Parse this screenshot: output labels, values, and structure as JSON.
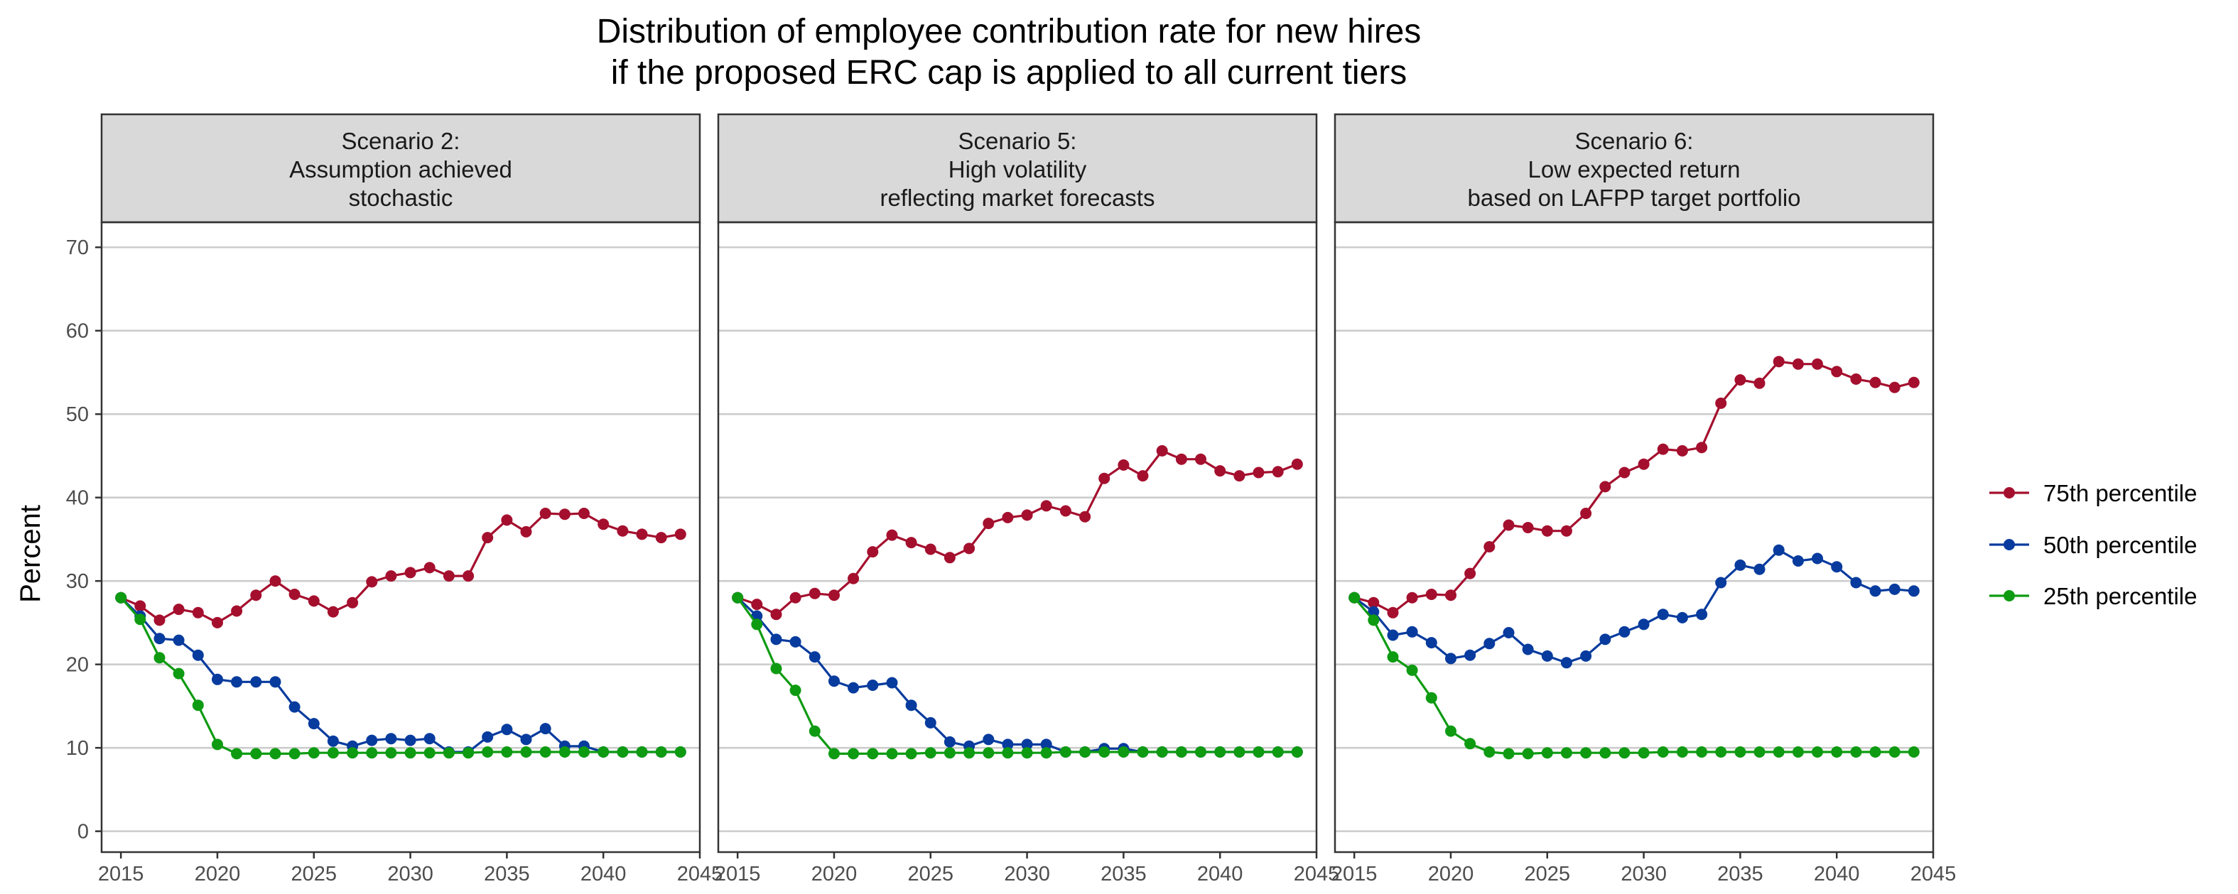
{
  "chart_data": {
    "type": "line",
    "title_lines": [
      "Distribution of employee contribution rate for new hires",
      "if the proposed ERC cap is applied to all current tiers"
    ],
    "ylabel": "Percent",
    "xlabel": "",
    "xlim": [
      2014,
      2045
    ],
    "ylim": [
      -2.5,
      73
    ],
    "x_ticks": [
      2015,
      2020,
      2025,
      2030,
      2035,
      2040,
      2045
    ],
    "y_ticks": [
      0,
      10,
      20,
      30,
      40,
      50,
      60,
      70
    ],
    "grid": true,
    "legend_position": "right",
    "legend": [
      {
        "name": "75th percentile",
        "color": "#a50f2e"
      },
      {
        "name": "50th percentile",
        "color": "#073b9e"
      },
      {
        "name": "25th percentile",
        "color": "#0e9b12"
      }
    ],
    "x": [
      2015,
      2016,
      2017,
      2018,
      2019,
      2020,
      2021,
      2022,
      2023,
      2024,
      2025,
      2026,
      2027,
      2028,
      2029,
      2030,
      2031,
      2032,
      2033,
      2034,
      2035,
      2036,
      2037,
      2038,
      2039,
      2040,
      2041,
      2042,
      2043,
      2044
    ],
    "panels": [
      {
        "strip_lines": [
          "Scenario 2:",
          "Assumption achieved",
          "stochastic"
        ],
        "series": [
          {
            "name": "75th percentile",
            "values": [
              28.0,
              27.0,
              25.3,
              26.6,
              26.2,
              25.0,
              26.4,
              28.3,
              30.0,
              28.4,
              27.6,
              26.3,
              27.4,
              29.9,
              30.6,
              31.0,
              31.6,
              30.6,
              30.6,
              35.2,
              37.3,
              35.9,
              38.1,
              38.0,
              38.1,
              36.8,
              36.0,
              35.6,
              35.2,
              35.6
            ]
          },
          {
            "name": "50th percentile",
            "values": [
              28.0,
              25.8,
              23.1,
              22.9,
              21.1,
              18.2,
              17.9,
              17.9,
              17.9,
              14.9,
              12.9,
              10.8,
              10.2,
              10.9,
              11.1,
              10.9,
              11.1,
              9.5,
              9.5,
              11.3,
              12.2,
              11.0,
              12.3,
              10.2,
              10.2,
              9.5,
              9.5,
              9.5,
              9.5,
              9.5
            ]
          },
          {
            "name": "25th percentile",
            "values": [
              28.0,
              25.4,
              20.8,
              18.9,
              15.1,
              10.4,
              9.3,
              9.3,
              9.3,
              9.3,
              9.4,
              9.4,
              9.4,
              9.4,
              9.4,
              9.4,
              9.4,
              9.4,
              9.4,
              9.5,
              9.5,
              9.5,
              9.5,
              9.5,
              9.5,
              9.5,
              9.5,
              9.5,
              9.5,
              9.5
            ]
          }
        ]
      },
      {
        "strip_lines": [
          "Scenario 5:",
          "High volatility",
          "reflecting market forecasts"
        ],
        "series": [
          {
            "name": "75th percentile",
            "values": [
              28.0,
              27.2,
              26.0,
              28.0,
              28.5,
              28.3,
              30.3,
              33.5,
              35.5,
              34.6,
              33.8,
              32.8,
              33.9,
              36.9,
              37.6,
              37.9,
              39.0,
              38.4,
              37.7,
              42.3,
              43.9,
              42.6,
              45.6,
              44.6,
              44.6,
              43.2,
              42.6,
              43.0,
              43.1,
              44.0
            ]
          },
          {
            "name": "50th percentile",
            "values": [
              28.0,
              25.8,
              23.0,
              22.7,
              20.9,
              18.0,
              17.2,
              17.5,
              17.8,
              15.1,
              13.0,
              10.7,
              10.2,
              11.0,
              10.4,
              10.4,
              10.4,
              9.5,
              9.5,
              9.9,
              9.9,
              9.5,
              9.5,
              9.5,
              9.5,
              9.5,
              9.5,
              9.5,
              9.5,
              9.5
            ]
          },
          {
            "name": "25th percentile",
            "values": [
              28.0,
              24.8,
              19.5,
              16.9,
              12.0,
              9.3,
              9.3,
              9.3,
              9.3,
              9.3,
              9.4,
              9.4,
              9.4,
              9.4,
              9.4,
              9.4,
              9.4,
              9.5,
              9.5,
              9.5,
              9.5,
              9.5,
              9.5,
              9.5,
              9.5,
              9.5,
              9.5,
              9.5,
              9.5,
              9.5
            ]
          }
        ]
      },
      {
        "strip_lines": [
          "Scenario 6:",
          "Low expected return",
          "based on LAFPP target portfolio"
        ],
        "series": [
          {
            "name": "75th percentile",
            "values": [
              28.0,
              27.4,
              26.2,
              28.0,
              28.4,
              28.3,
              30.9,
              34.1,
              36.7,
              36.4,
              36.0,
              36.0,
              38.1,
              41.3,
              43.0,
              44.0,
              45.8,
              45.6,
              46.0,
              51.3,
              54.1,
              53.7,
              56.3,
              56.0,
              56.0,
              55.1,
              54.2,
              53.8,
              53.2,
              53.8
            ]
          },
          {
            "name": "50th percentile",
            "values": [
              28.0,
              26.3,
              23.5,
              23.9,
              22.6,
              20.7,
              21.1,
              22.5,
              23.8,
              21.8,
              21.0,
              20.2,
              21.0,
              23.0,
              23.9,
              24.8,
              26.0,
              25.6,
              26.0,
              29.8,
              31.9,
              31.4,
              33.7,
              32.4,
              32.7,
              31.7,
              29.8,
              28.8,
              29.0,
              28.8
            ]
          },
          {
            "name": "25th percentile",
            "values": [
              28.0,
              25.3,
              20.9,
              19.3,
              16.0,
              12.0,
              10.5,
              9.5,
              9.3,
              9.3,
              9.4,
              9.4,
              9.4,
              9.4,
              9.4,
              9.4,
              9.5,
              9.5,
              9.5,
              9.5,
              9.5,
              9.5,
              9.5,
              9.5,
              9.5,
              9.5,
              9.5,
              9.5,
              9.5,
              9.5
            ]
          }
        ]
      }
    ]
  }
}
